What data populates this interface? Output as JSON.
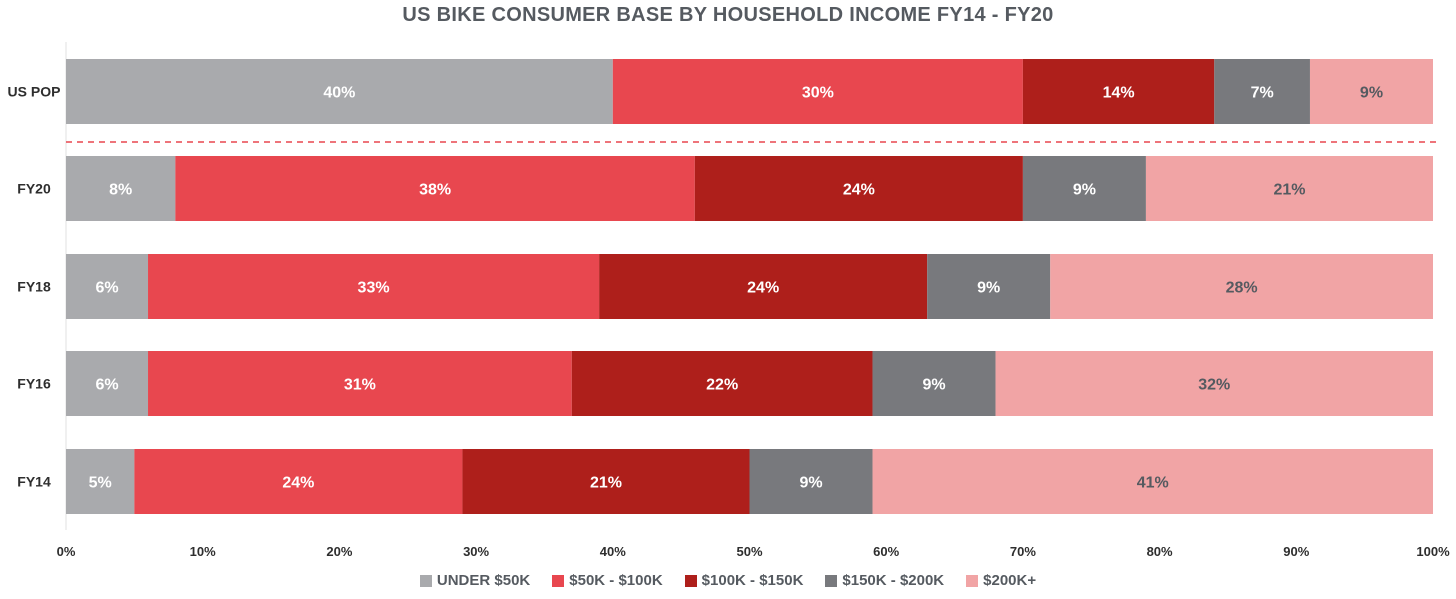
{
  "chart_data": {
    "type": "bar",
    "orientation": "horizontal",
    "stacked": true,
    "title": "US BIKE CONSUMER BASE BY HOUSEHOLD INCOME FY14 - FY20",
    "xlabel": "",
    "ylabel": "",
    "xlim": [
      0,
      100
    ],
    "xticks": [
      "0%",
      "10%",
      "20%",
      "30%",
      "40%",
      "50%",
      "60%",
      "70%",
      "80%",
      "90%",
      "100%"
    ],
    "categories": [
      "US POP",
      "FY20",
      "FY18",
      "FY16",
      "FY14"
    ],
    "series": [
      {
        "name": "UNDER $50K",
        "color": "#a9aaad",
        "values": [
          40,
          8,
          6,
          6,
          5
        ]
      },
      {
        "name": "$50K - $100K",
        "color": "#e8474f",
        "values": [
          30,
          38,
          33,
          31,
          24
        ]
      },
      {
        "name": "$100K - $150K",
        "color": "#ae1f1b",
        "values": [
          14,
          24,
          24,
          22,
          21
        ]
      },
      {
        "name": "$150K - $200K",
        "color": "#78797d",
        "values": [
          7,
          9,
          9,
          9,
          9
        ]
      },
      {
        "name": "$200K+",
        "color": "#f1a4a5",
        "values": [
          9,
          21,
          28,
          32,
          41
        ]
      }
    ],
    "label_colors": [
      "#ffffff",
      "#ffffff",
      "#ffffff",
      "#ffffff",
      "#555a60"
    ],
    "divider_color": "#e8474f",
    "legend_position": "bottom",
    "grid": false
  }
}
